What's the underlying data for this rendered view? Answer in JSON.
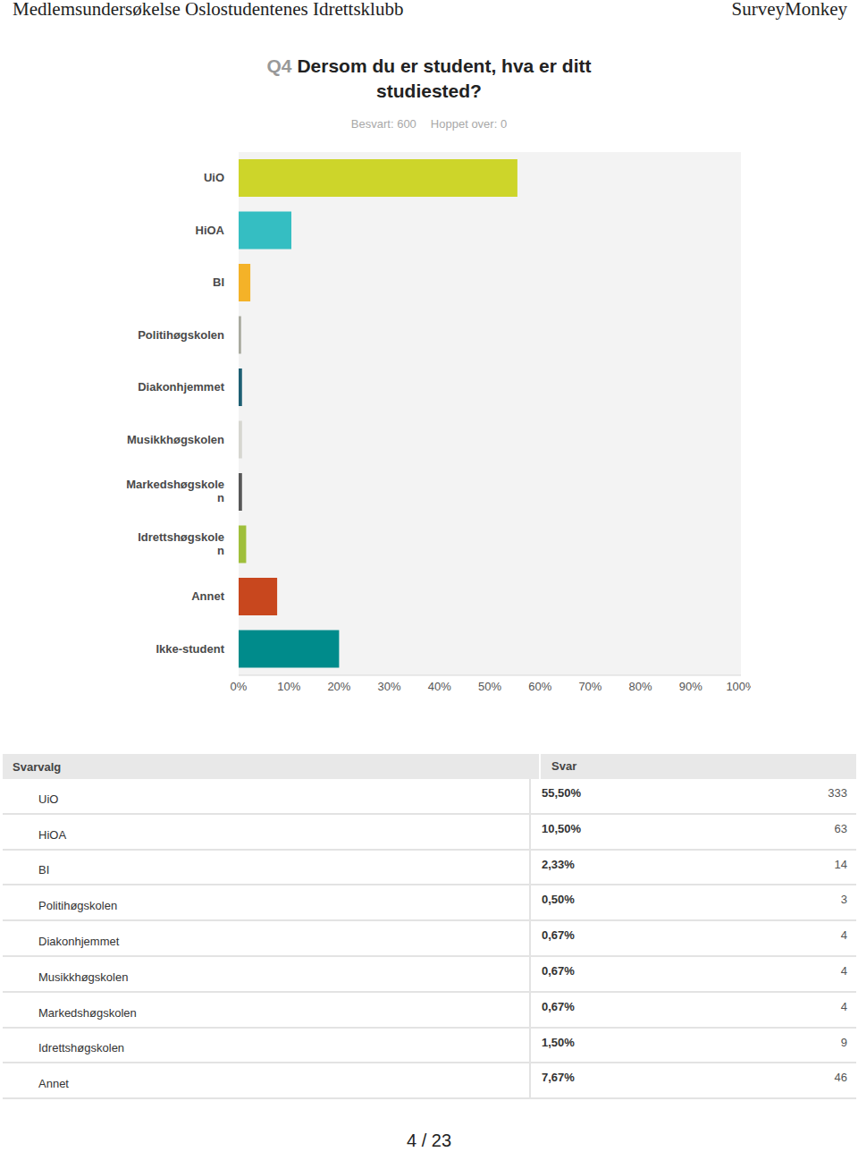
{
  "header": {
    "left": "Medlemsundersøkelse Oslostudentenes Idrettsklubb",
    "right": "SurveyMonkey"
  },
  "question": {
    "number": "Q4",
    "text": "Dersom du er student, hva er ditt studiested?",
    "answered": "Besvart: 600",
    "skipped": "Hoppet over: 0"
  },
  "chart_data": {
    "type": "bar",
    "orientation": "horizontal",
    "categories": [
      "UiO",
      "HiOA",
      "BI",
      "Politihøgskolen",
      "Diakonhjemmet",
      "Musikkhøgskolen",
      "Markedshøgskolen",
      "Idrettshøgskolen",
      "Annet",
      "Ikke-student"
    ],
    "values": [
      55.5,
      10.5,
      2.33,
      0.5,
      0.67,
      0.67,
      0.67,
      1.5,
      7.67,
      20
    ],
    "colors": [
      "#cdd52a",
      "#35bec2",
      "#f4b228",
      "#a9aa9f",
      "#1e5f73",
      "#d6d6d0",
      "#575757",
      "#9fbf3b",
      "#c8471e",
      "#008b8b"
    ],
    "xlim": [
      0,
      100
    ],
    "xticks": [
      {
        "value": 0,
        "label": "0%"
      },
      {
        "value": 10,
        "label": "10%"
      },
      {
        "value": 20,
        "label": "20%"
      },
      {
        "value": 30,
        "label": "30%"
      },
      {
        "value": 40,
        "label": "40%"
      },
      {
        "value": 50,
        "label": "50%"
      },
      {
        "value": 60,
        "label": "60%"
      },
      {
        "value": 70,
        "label": "70%"
      },
      {
        "value": 80,
        "label": "80%"
      },
      {
        "value": 90,
        "label": "90%"
      },
      {
        "value": 100,
        "label": "100%"
      }
    ],
    "grid": false,
    "data_labels": false
  },
  "table": {
    "columns": [
      "Svarvalg",
      "Svar"
    ],
    "rows": [
      {
        "option": "UiO",
        "percent": "55,50%",
        "count": 333
      },
      {
        "option": "HiOA",
        "percent": "10,50%",
        "count": 63
      },
      {
        "option": "BI",
        "percent": "2,33%",
        "count": 14
      },
      {
        "option": "Politihøgskolen",
        "percent": "0,50%",
        "count": 3
      },
      {
        "option": "Diakonhjemmet",
        "percent": "0,67%",
        "count": 4
      },
      {
        "option": "Musikkhøgskolen",
        "percent": "0,67%",
        "count": 4
      },
      {
        "option": "Markedshøgskolen",
        "percent": "0,67%",
        "count": 4
      },
      {
        "option": "Idrettshøgskolen",
        "percent": "1,50%",
        "count": 9
      },
      {
        "option": "Annet",
        "percent": "7,67%",
        "count": 46
      }
    ]
  },
  "footer": "4 / 23"
}
